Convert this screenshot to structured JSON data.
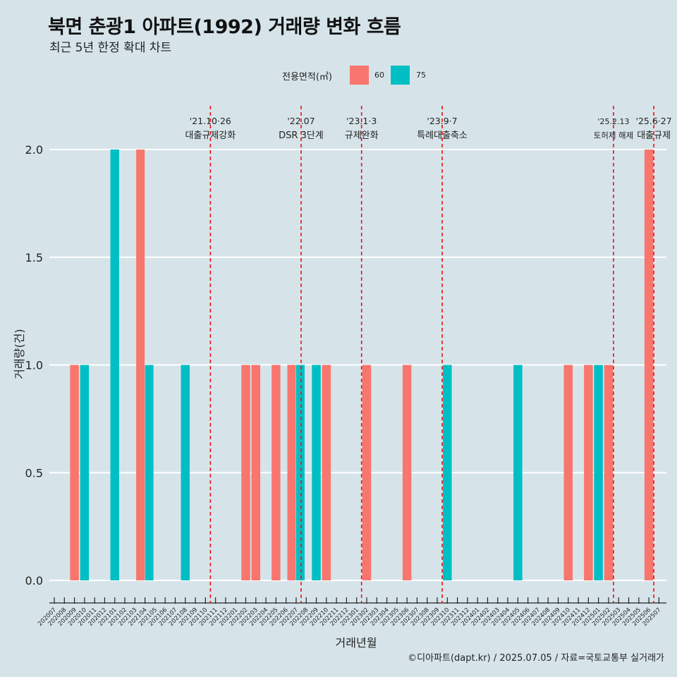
{
  "title": "북면 춘광1 아파트(1992) 거래량 변화 흐름",
  "subtitle": "최근 5년 한정 확대 차트",
  "caption": "©디아파트(dapt.kr) / 2025.07.05 / 자료=국토교통부 실거래가",
  "legend": {
    "title": "전용면적(㎡)",
    "items": [
      {
        "label": "60",
        "color": "#f8766d"
      },
      {
        "label": "75",
        "color": "#00bfc4"
      }
    ]
  },
  "chart_data": {
    "type": "bar",
    "xlabel": "거래년월",
    "ylabel": "거래량(건)",
    "ylim": [
      0,
      2
    ],
    "yticks": [
      "0.0",
      "0.5",
      "1.0",
      "1.5",
      "2.0"
    ],
    "grid": true,
    "categories": [
      "202007",
      "202008",
      "202009",
      "202010",
      "202011",
      "202012",
      "202101",
      "202102",
      "202103",
      "202104",
      "202105",
      "202106",
      "202107",
      "202108",
      "202109",
      "202110",
      "202111",
      "202112",
      "202201",
      "202202",
      "202203",
      "202204",
      "202205",
      "202206",
      "202207",
      "202208",
      "202209",
      "202210",
      "202211",
      "202212",
      "202301",
      "202302",
      "202303",
      "202304",
      "202305",
      "202306",
      "202307",
      "202308",
      "202309",
      "202310",
      "202311",
      "202312",
      "202401",
      "202402",
      "202403",
      "202404",
      "202405",
      "202406",
      "202407",
      "202408",
      "202409",
      "202410",
      "202411",
      "202412",
      "202501",
      "202502",
      "202503",
      "202504",
      "202505",
      "202506",
      "202507"
    ],
    "series": [
      {
        "name": "60",
        "color": "#f8766d",
        "values": [
          0,
          0,
          1,
          0,
          0,
          0,
          0,
          0,
          0,
          2,
          0,
          0,
          0,
          0,
          0,
          0,
          0,
          0,
          0,
          1,
          1,
          0,
          1,
          0,
          1,
          0,
          0,
          1,
          0,
          0,
          0,
          1,
          0,
          0,
          0,
          1,
          0,
          0,
          0,
          0,
          0,
          0,
          0,
          0,
          0,
          0,
          0,
          0,
          0,
          0,
          0,
          1,
          0,
          1,
          0,
          1,
          0,
          0,
          0,
          2,
          0
        ]
      },
      {
        "name": "75",
        "color": "#00bfc4",
        "values": [
          0,
          0,
          0,
          1,
          0,
          0,
          2,
          0,
          0,
          1,
          0,
          0,
          0,
          1,
          0,
          0,
          0,
          0,
          0,
          0,
          0,
          0,
          0,
          0,
          1,
          0,
          1,
          0,
          0,
          0,
          0,
          0,
          0,
          0,
          0,
          0,
          0,
          0,
          0,
          1,
          0,
          0,
          0,
          0,
          0,
          0,
          1,
          0,
          0,
          0,
          0,
          0,
          0,
          0,
          1,
          0,
          0,
          0,
          0,
          0,
          0
        ]
      }
    ],
    "annotations": [
      {
        "x": "202110",
        "date": "'21.10·26",
        "label": "대출규제강화"
      },
      {
        "x": "202207",
        "date": "'22.07",
        "label": "DSR 3단계"
      },
      {
        "x": "202301",
        "date": "'23.1·3",
        "label": "규제완화"
      },
      {
        "x": "202309",
        "date": "'23.9·7",
        "label": "특례대출축소"
      },
      {
        "x": "202502",
        "date": "'25.2.13",
        "label": "토허제 해제"
      },
      {
        "x": "202506",
        "date": "'25.6·27",
        "label": "대출규제"
      }
    ]
  }
}
